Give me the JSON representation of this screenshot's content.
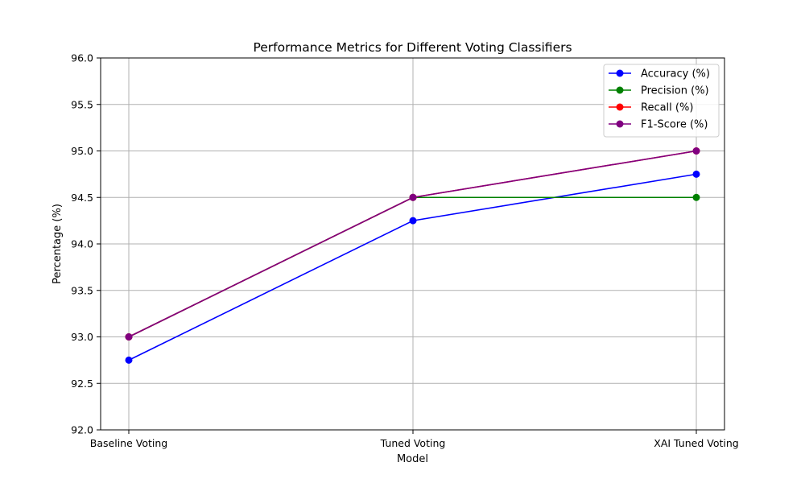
{
  "chart_data": {
    "type": "line",
    "title": "Performance Metrics for Different Voting Classifiers",
    "xlabel": "Model",
    "ylabel": "Percentage (%)",
    "categories": [
      "Baseline Voting",
      "Tuned Voting",
      "XAI Tuned Voting"
    ],
    "ylim": [
      92.0,
      96.0
    ],
    "yticks": [
      "92.0",
      "92.5",
      "93.0",
      "93.5",
      "94.0",
      "94.5",
      "95.0",
      "95.5",
      "96.0"
    ],
    "grid": true,
    "legend_position": "top-right",
    "series": [
      {
        "name": "Accuracy (%)",
        "color": "#0000ff",
        "values": [
          92.75,
          94.25,
          94.75
        ]
      },
      {
        "name": "Precision (%)",
        "color": "#008000",
        "values": [
          93.0,
          94.5,
          94.5
        ]
      },
      {
        "name": "Recall (%)",
        "color": "#ff0000",
        "values": [
          93.0,
          94.5,
          95.0
        ]
      },
      {
        "name": "F1-Score (%)",
        "color": "#800080",
        "values": [
          93.0,
          94.5,
          95.0
        ]
      }
    ]
  }
}
